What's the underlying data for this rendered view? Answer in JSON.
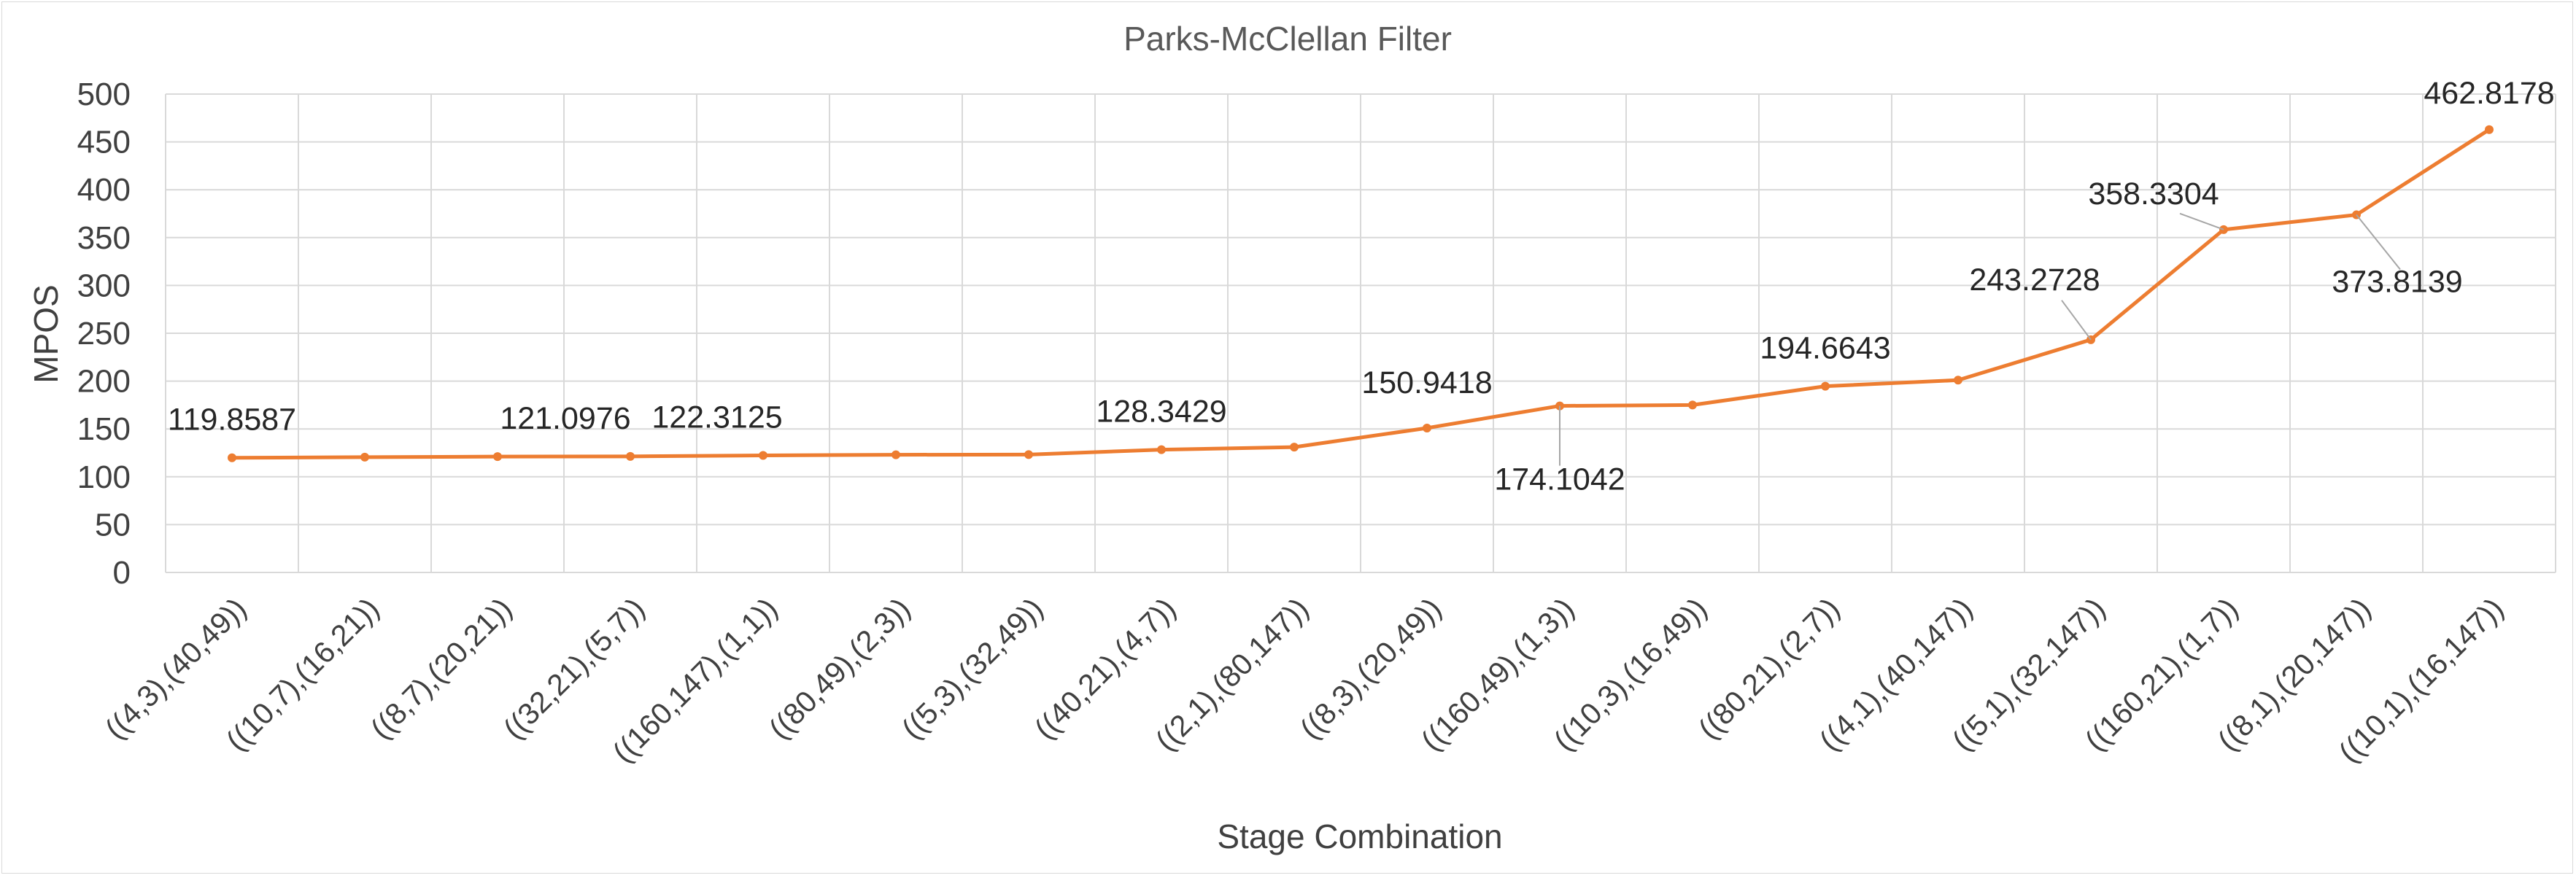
{
  "chart_data": {
    "type": "line",
    "title": "Parks-McClellan Filter",
    "xlabel": "Stage Combination",
    "ylabel": "MPOS",
    "ylim": [
      0,
      500
    ],
    "yticks": [
      0,
      50,
      100,
      150,
      200,
      250,
      300,
      350,
      400,
      450,
      500
    ],
    "grid": true,
    "categories": [
      "((4,3),(40,49))",
      "((10,7),(16,21))",
      "((8,7),(20,21))",
      "((32,21),(5,7))",
      "((160,147),(1,1))",
      "((80,49),(2,3))",
      "((5,3),(32,49))",
      "((40,21),(4,7))",
      "((2,1),(80,147))",
      "((8,3),(20,49))",
      "((160,49),(1,3))",
      "((10,3),(16,49))",
      "((80,21),(2,7))",
      "((4,1),(40,147))",
      "((5,1),(32,147))",
      "((160,21),(1,7))",
      "((8,1),(20,147))",
      "((10,1),(16,147))"
    ],
    "series": [
      {
        "color": "#ed7d31",
        "values": [
          119.8587,
          120.5,
          121.0976,
          121.3,
          122.3125,
          123.0,
          123.2,
          128.3429,
          131.0,
          150.9418,
          174.1042,
          175.0,
          194.6643,
          201.0,
          243.2728,
          358.3304,
          373.8139,
          462.8178
        ]
      }
    ],
    "data_labels": [
      {
        "index": 0,
        "text": "119.8587"
      },
      {
        "index": 2,
        "text": "121.0976"
      },
      {
        "index": 4,
        "text": "122.3125"
      },
      {
        "index": 7,
        "text": "128.3429"
      },
      {
        "index": 9,
        "text": "150.9418"
      },
      {
        "index": 10,
        "text": "174.1042"
      },
      {
        "index": 12,
        "text": "194.6643"
      },
      {
        "index": 14,
        "text": "243.2728"
      },
      {
        "index": 15,
        "text": "358.3304"
      },
      {
        "index": 16,
        "text": "373.8139"
      },
      {
        "index": 17,
        "text": "462.8178"
      }
    ]
  }
}
